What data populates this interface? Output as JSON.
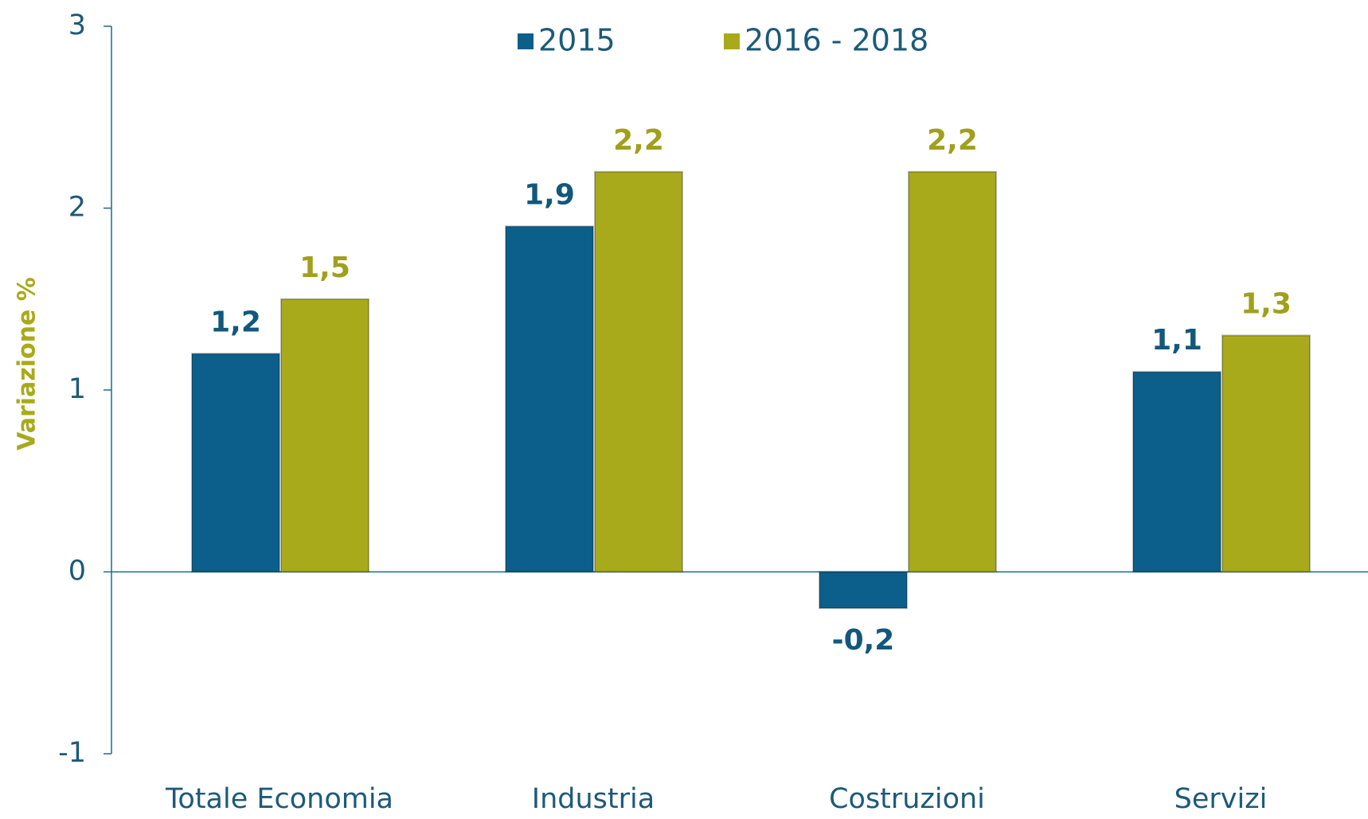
{
  "chart_data": {
    "type": "bar",
    "y_label": "Variazione %",
    "categories": [
      "Totale Economia",
      "Industria",
      "Costruzioni",
      "Servizi"
    ],
    "series": [
      {
        "name": "2015",
        "color": "#0b5f8a",
        "values": [
          1.2,
          1.9,
          -0.2,
          1.1
        ],
        "value_labels": [
          "1,2",
          "1,9",
          "-0,2",
          "1,1"
        ]
      },
      {
        "name": "2016 - 2018",
        "color": "#a9aa1b",
        "values": [
          1.5,
          2.2,
          2.2,
          1.3
        ],
        "value_labels": [
          "1,5",
          "2,2",
          "2,2",
          "1,3"
        ]
      }
    ],
    "ylim": [
      -1,
      3
    ],
    "yticks": [
      -1,
      0,
      1,
      2,
      3
    ],
    "legend": "top"
  }
}
